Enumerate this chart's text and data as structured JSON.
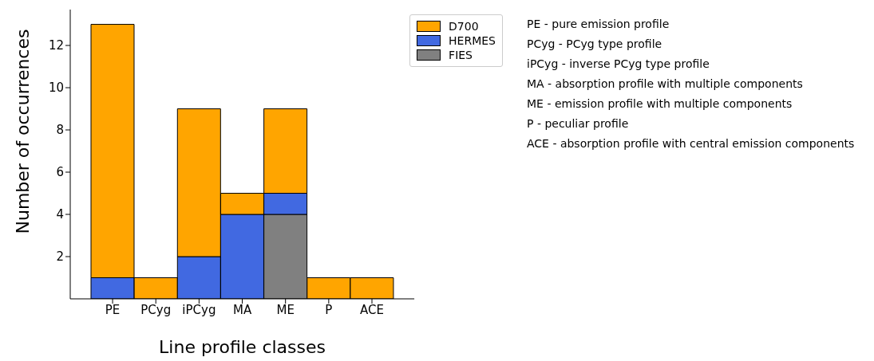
{
  "chart_data": {
    "type": "bar",
    "stacked": true,
    "xlabel": "Line profile classes",
    "ylabel": "Number of occurrences",
    "categories": [
      "PE",
      "PCyg",
      "iPCyg",
      "MA",
      "ME",
      "P",
      "ACE"
    ],
    "series": [
      {
        "name": "FIES",
        "color": "#808080",
        "values": [
          0,
          0,
          0,
          0,
          4,
          0,
          0
        ]
      },
      {
        "name": "HERMES",
        "color": "#4169e1",
        "values": [
          1,
          0,
          2,
          4,
          1,
          0,
          0
        ]
      },
      {
        "name": "D700",
        "color": "#ffa500",
        "values": [
          12,
          1,
          7,
          1,
          4,
          1,
          1
        ]
      }
    ],
    "ylim": [
      0,
      13.7
    ],
    "yticks": [
      2,
      4,
      6,
      8,
      10,
      12
    ],
    "grid": false,
    "legend": "top right",
    "annotations": [
      "PE - pure emission profile",
      "PCyg - PCyg type profile",
      "iPCyg - inverse PCyg type profile",
      "MA - absorption profile with multiple components",
      "ME - emission profile with multiple components",
      "P - peculiar profile",
      "ACE - absorption profile with central emission components"
    ]
  }
}
